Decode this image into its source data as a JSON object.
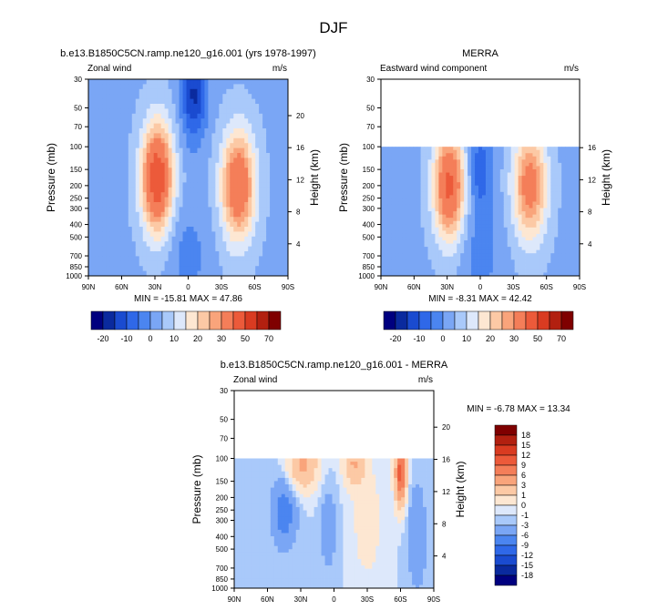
{
  "page_title": "DJF",
  "chart_data": [
    {
      "type": "contour",
      "title": "b.e13.B1850C5CN.ramp.ne120_g16.001 (yrs 1978-1997)",
      "left_label": "Zonal wind",
      "right_label": "m/s",
      "xlabel": "",
      "ylabel": "Pressure (mb)",
      "ylabel_right": "Height (km)",
      "x_ticks": [
        "90N",
        "60N",
        "30N",
        "0",
        "30S",
        "60S",
        "90S"
      ],
      "x_tick_values": [
        90,
        60,
        30,
        0,
        -30,
        -60,
        -90
      ],
      "y_ticks": [
        "30",
        "50",
        "70",
        "100",
        "150",
        "200",
        "250",
        "300",
        "400",
        "500",
        "700",
        "850",
        "1000"
      ],
      "y_tick_values": [
        30,
        50,
        70,
        100,
        150,
        200,
        250,
        300,
        400,
        500,
        700,
        850,
        1000
      ],
      "height_ticks": [
        "20",
        "16",
        "12",
        "8",
        "4"
      ],
      "height_tick_values": [
        20,
        16,
        12,
        8,
        4
      ],
      "ylim": [
        1000,
        30
      ],
      "data_top_mb": 30,
      "stats": "MIN = -15.81   MAX = 47.86",
      "min": -15.81,
      "max": 47.86,
      "jets": [
        {
          "lat": 28,
          "p": 175,
          "u": 47.86
        },
        {
          "lat": -45,
          "p": 200,
          "u": 40
        }
      ],
      "minima": [
        {
          "lat": -5,
          "p": 40,
          "u": -15.81
        }
      ]
    },
    {
      "type": "contour",
      "title": "MERRA",
      "left_label": "Eastward wind component",
      "right_label": "m/s",
      "ylabel": "Pressure (mb)",
      "ylabel_right": "Height (km)",
      "x_ticks": [
        "90N",
        "60N",
        "30N",
        "0",
        "30S",
        "60S",
        "90S"
      ],
      "x_tick_values": [
        90,
        60,
        30,
        0,
        -30,
        -60,
        -90
      ],
      "y_ticks": [
        "30",
        "50",
        "70",
        "100",
        "150",
        "200",
        "250",
        "300",
        "400",
        "500",
        "700",
        "850",
        "1000"
      ],
      "y_tick_values": [
        30,
        50,
        70,
        100,
        150,
        200,
        250,
        300,
        400,
        500,
        700,
        850,
        1000
      ],
      "height_ticks": [
        "16",
        "12",
        "8",
        "4"
      ],
      "height_tick_values": [
        16,
        12,
        8,
        4
      ],
      "ylim": [
        1000,
        30
      ],
      "data_top_mb": 100,
      "stats": "MIN = -8.31   MAX = 42.42",
      "min": -8.31,
      "max": 42.42,
      "jets": [
        {
          "lat": 28,
          "p": 200,
          "u": 42.42
        },
        {
          "lat": -45,
          "p": 200,
          "u": 35
        }
      ],
      "minima": [
        {
          "lat": 0,
          "p": 150,
          "u": -8.31
        }
      ]
    },
    {
      "type": "contour",
      "title": "b.e13.B1850C5CN.ramp.ne120_g16.001 - MERRA",
      "left_label": "Zonal wind",
      "right_label": "m/s",
      "ylabel": "Pressure (mb)",
      "ylabel_right": "Height (km)",
      "x_ticks": [
        "90N",
        "60N",
        "30N",
        "0",
        "30S",
        "60S",
        "90S"
      ],
      "x_tick_values": [
        90,
        60,
        30,
        0,
        -30,
        -60,
        -90
      ],
      "y_ticks": [
        "30",
        "50",
        "70",
        "100",
        "150",
        "200",
        "250",
        "300",
        "400",
        "500",
        "700",
        "850",
        "1000"
      ],
      "y_tick_values": [
        30,
        50,
        70,
        100,
        150,
        200,
        250,
        300,
        400,
        500,
        700,
        850,
        1000
      ],
      "height_ticks": [
        "20",
        "16",
        "12",
        "8",
        "4"
      ],
      "height_tick_values": [
        20,
        16,
        12,
        8,
        4
      ],
      "ylim": [
        1000,
        30
      ],
      "data_top_mb": 100,
      "stats": "MIN = -6.78   MAX = 13.34",
      "min": -6.78,
      "max": 13.34
    }
  ],
  "colorbar_abs": {
    "labels": [
      "-20",
      "-10",
      "0",
      "10",
      "20",
      "30",
      "50",
      "70"
    ],
    "colors": [
      "#00007f",
      "#0a2a9e",
      "#1a4bd0",
      "#2f68e8",
      "#4b85f0",
      "#7aa6f5",
      "#a9c9fa",
      "#dde8fb",
      "#fde7d2",
      "#fcc9a5",
      "#f9a47b",
      "#f47e59",
      "#ec5a3a",
      "#d93b21",
      "#b22010",
      "#7f0000"
    ]
  },
  "colorbar_diff": {
    "labels": [
      "18",
      "15",
      "12",
      "9",
      "6",
      "3",
      "1",
      "0",
      "-1",
      "-3",
      "-6",
      "-9",
      "-12",
      "-15",
      "-18"
    ],
    "colors": [
      "#7f0000",
      "#b22010",
      "#d93b21",
      "#ec5a3a",
      "#f47e59",
      "#f9a47b",
      "#fcc9a5",
      "#fde7d2",
      "#dde8fb",
      "#a9c9fa",
      "#7aa6f5",
      "#4b85f0",
      "#2f68e8",
      "#1a4bd0",
      "#0a2a9e",
      "#00007f"
    ]
  }
}
